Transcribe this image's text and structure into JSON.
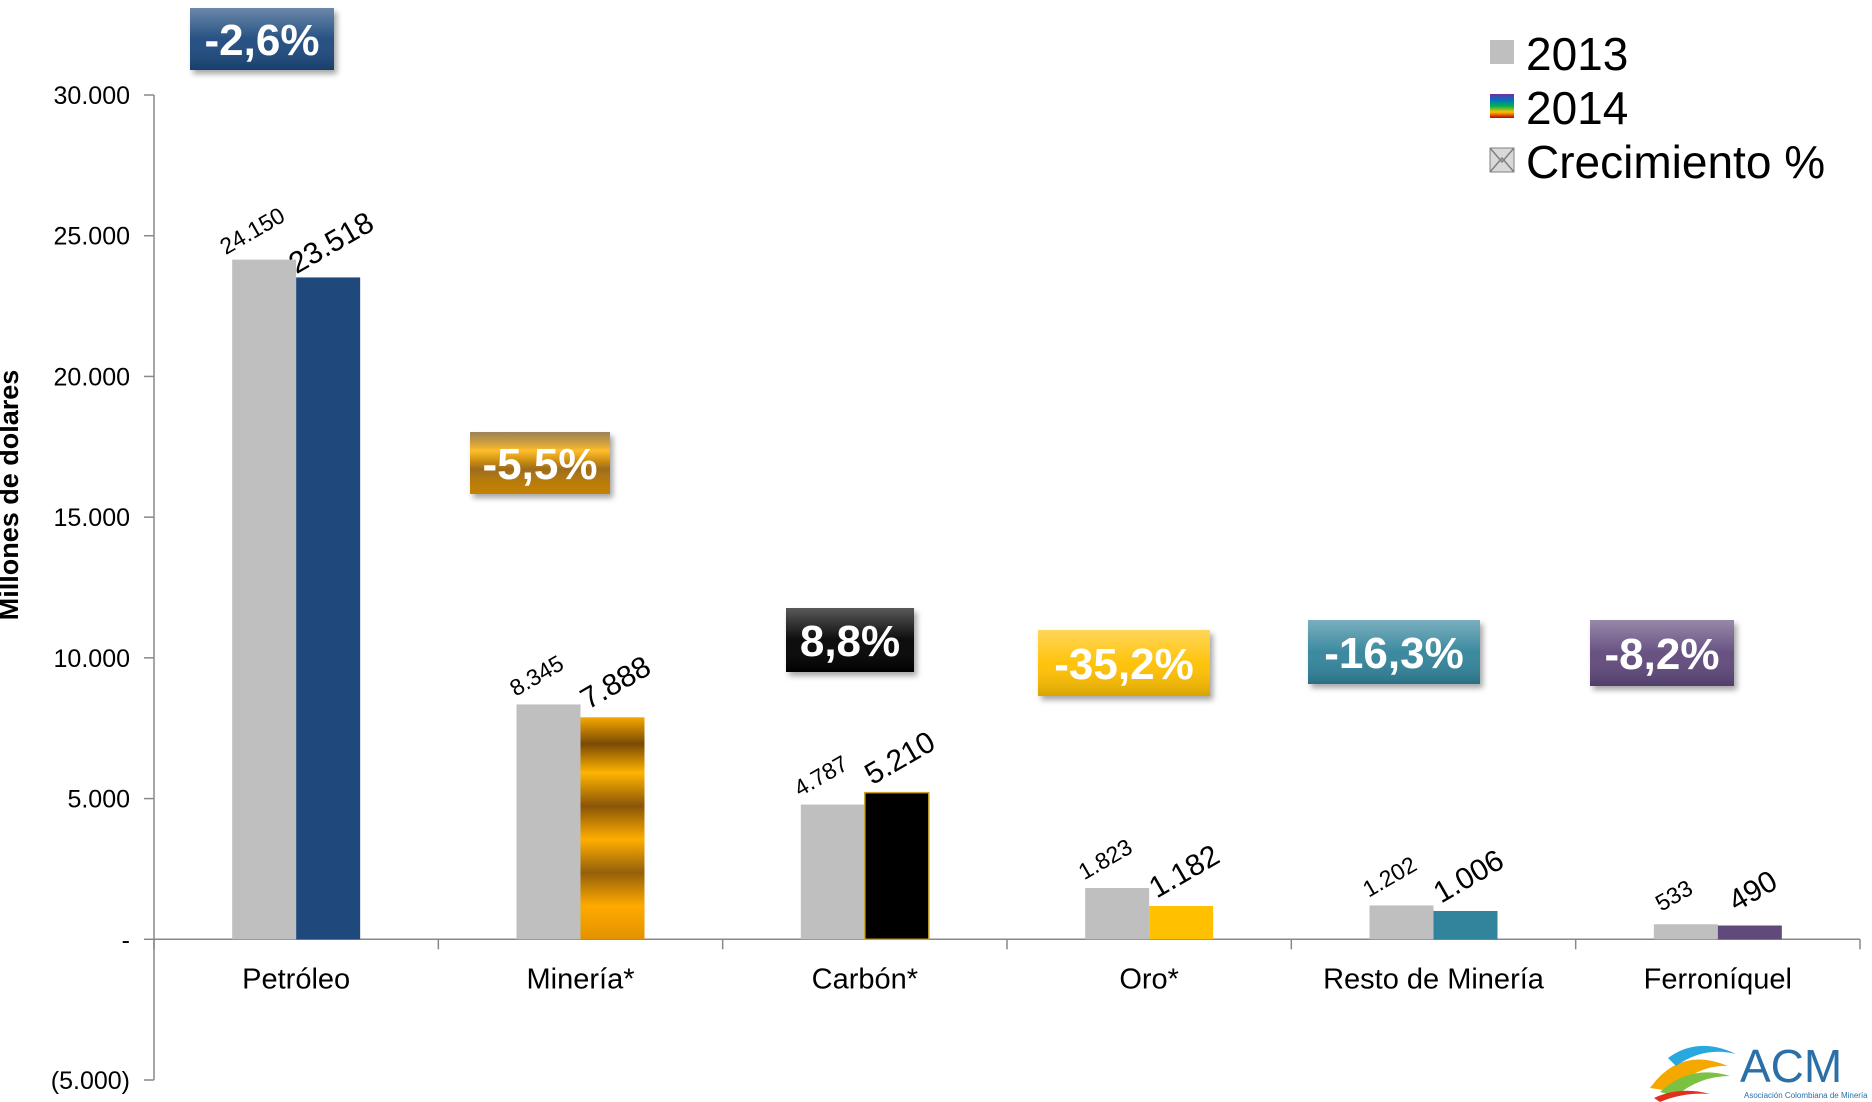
{
  "chart_data": {
    "type": "bar",
    "ylabel": "Millones de dolares",
    "ylim": [
      -5000,
      30000
    ],
    "yticks": [
      -5000,
      0,
      5000,
      10000,
      15000,
      20000,
      25000,
      30000
    ],
    "ytick_labels": [
      "(5.000)",
      "-",
      "5.000",
      "10.000",
      "15.000",
      "20.000",
      "25.000",
      "30.000"
    ],
    "categories": [
      "Petróleo",
      "Minería*",
      "Carbón*",
      "Oro*",
      "Resto de Minería",
      "Ferroníquel"
    ],
    "series": [
      {
        "name": "2013",
        "values": [
          24150,
          8345,
          4787,
          1823,
          1202,
          533
        ],
        "labels": [
          "24.150",
          "8.345",
          "4.787",
          "1.823",
          "1.202",
          "533"
        ],
        "color": "#bfbfbf"
      },
      {
        "name": "2014",
        "values": [
          23518,
          7888,
          5210,
          1182,
          1006,
          490
        ],
        "labels": [
          "23.518",
          "7.888",
          "5.210",
          "1.182",
          "1.006",
          "490"
        ],
        "colors": [
          "#1f497d",
          "#c98a0e",
          "#000000",
          "#ffc000",
          "#31849b",
          "#604a7b"
        ]
      }
    ],
    "growth": {
      "name": "Crecimiento %",
      "values": [
        -2.6,
        -5.5,
        8.8,
        -35.2,
        -16.3,
        -8.2
      ],
      "labels": [
        "-2,6%",
        "-5,5%",
        "8,8%",
        "-35,2%",
        "-16,3%",
        "-8,2%"
      ],
      "colors": [
        "#1f497d",
        "#c98a0e",
        "#000000",
        "#ffc000",
        "#31849b",
        "#604a7b"
      ]
    },
    "legend": {
      "position": "top-right",
      "entries": [
        "2013",
        "2014",
        "Crecimiento %"
      ]
    },
    "grid": false
  },
  "logo": {
    "text": "ACM",
    "subtitle": "Asociación Colombiana de Minería",
    "color": "#2a6fa8"
  }
}
